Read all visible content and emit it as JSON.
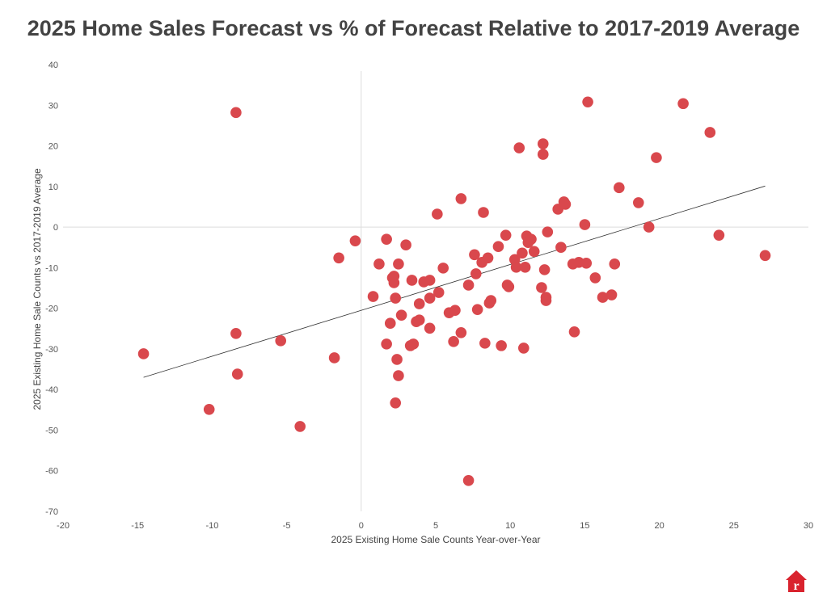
{
  "chart_data": {
    "type": "scatter",
    "title": "2025 Home Sales Forecast vs % of Forecast Relative to 2017-2019 Average",
    "xlabel": "2025 Existing Home Sale Counts Year-over-Year",
    "ylabel": "2025 Existing Home Sale Counts vs 2017-2019 Average",
    "xlim": [
      -20,
      30
    ],
    "ylim": [
      -70,
      40
    ],
    "xticks": [
      -20,
      -15,
      -10,
      -5,
      0,
      5,
      10,
      15,
      20,
      25,
      30
    ],
    "yticks": [
      40,
      30,
      20,
      10,
      0,
      -10,
      -20,
      -30,
      -40,
      -50,
      -60,
      -70
    ],
    "grid": false,
    "point_color": "#d9484d",
    "trendline": {
      "x": [
        -14.6,
        27.1
      ],
      "y": [
        -37.0,
        10.1
      ]
    },
    "points": [
      [
        -14.6,
        -31.2
      ],
      [
        -10.2,
        -44.9
      ],
      [
        -8.4,
        28.2
      ],
      [
        -8.4,
        -26.2
      ],
      [
        -8.3,
        -36.2
      ],
      [
        -5.4,
        -28.0
      ],
      [
        -4.1,
        -49.1
      ],
      [
        -1.8,
        -32.2
      ],
      [
        -1.5,
        -7.6
      ],
      [
        -0.4,
        -3.4
      ],
      [
        0.8,
        -17.1
      ],
      [
        1.2,
        -9.1
      ],
      [
        1.7,
        -3.0
      ],
      [
        1.7,
        -28.8
      ],
      [
        1.95,
        -23.7
      ],
      [
        2.1,
        -12.5
      ],
      [
        2.2,
        -13.7
      ],
      [
        2.2,
        -12.1
      ],
      [
        2.3,
        -17.5
      ],
      [
        2.3,
        -43.3
      ],
      [
        2.4,
        -32.6
      ],
      [
        2.5,
        -9.1
      ],
      [
        2.5,
        -36.6
      ],
      [
        2.7,
        -21.7
      ],
      [
        3.0,
        -4.4
      ],
      [
        3.3,
        -29.2
      ],
      [
        3.5,
        -28.8
      ],
      [
        3.4,
        -13.1
      ],
      [
        3.7,
        -23.3
      ],
      [
        3.9,
        -18.9
      ],
      [
        3.9,
        -22.9
      ],
      [
        4.2,
        -13.5
      ],
      [
        4.6,
        -13.1
      ],
      [
        4.6,
        -17.5
      ],
      [
        4.6,
        -24.9
      ],
      [
        5.1,
        3.2
      ],
      [
        5.2,
        -16.1
      ],
      [
        5.5,
        -10.1
      ],
      [
        5.9,
        -21.1
      ],
      [
        6.2,
        -28.2
      ],
      [
        6.3,
        -20.5
      ],
      [
        6.7,
        7.0
      ],
      [
        6.7,
        -26.0
      ],
      [
        7.2,
        -14.3
      ],
      [
        7.2,
        -62.4
      ],
      [
        7.6,
        -6.8
      ],
      [
        7.7,
        -11.5
      ],
      [
        7.8,
        -20.3
      ],
      [
        8.1,
        -8.7
      ],
      [
        8.2,
        3.6
      ],
      [
        8.3,
        -28.6
      ],
      [
        8.5,
        -7.6
      ],
      [
        8.6,
        -18.7
      ],
      [
        8.7,
        -18.1
      ],
      [
        9.2,
        -4.8
      ],
      [
        9.4,
        -29.2
      ],
      [
        9.7,
        -2.0
      ],
      [
        9.8,
        -14.3
      ],
      [
        9.9,
        -14.7
      ],
      [
        10.3,
        -8.0
      ],
      [
        10.4,
        -9.9
      ],
      [
        10.6,
        19.5
      ],
      [
        10.8,
        -6.4
      ],
      [
        10.9,
        -29.8
      ],
      [
        11.0,
        -9.9
      ],
      [
        11.1,
        -2.2
      ],
      [
        11.2,
        -3.8
      ],
      [
        11.4,
        -3.0
      ],
      [
        11.6,
        -6.0
      ],
      [
        12.1,
        -14.9
      ],
      [
        12.2,
        20.5
      ],
      [
        12.2,
        17.9
      ],
      [
        12.3,
        -10.5
      ],
      [
        12.4,
        -17.3
      ],
      [
        12.4,
        -18.1
      ],
      [
        12.5,
        -1.2
      ],
      [
        13.2,
        4.4
      ],
      [
        13.4,
        -5.0
      ],
      [
        13.6,
        6.2
      ],
      [
        13.7,
        5.6
      ],
      [
        14.2,
        -9.1
      ],
      [
        14.3,
        -25.8
      ],
      [
        14.6,
        -8.7
      ],
      [
        15.0,
        0.6
      ],
      [
        15.1,
        -8.9
      ],
      [
        15.2,
        30.8
      ],
      [
        15.7,
        -12.5
      ],
      [
        16.2,
        -17.3
      ],
      [
        16.8,
        -16.7
      ],
      [
        17.0,
        -9.1
      ],
      [
        17.3,
        9.7
      ],
      [
        18.6,
        6.0
      ],
      [
        19.3,
        0.0
      ],
      [
        19.8,
        17.1
      ],
      [
        21.6,
        30.4
      ],
      [
        23.4,
        23.3
      ],
      [
        24.0,
        -2.0
      ],
      [
        27.1,
        -7.0
      ]
    ]
  },
  "logo": {
    "letter": "r",
    "color": "#d9232e"
  }
}
